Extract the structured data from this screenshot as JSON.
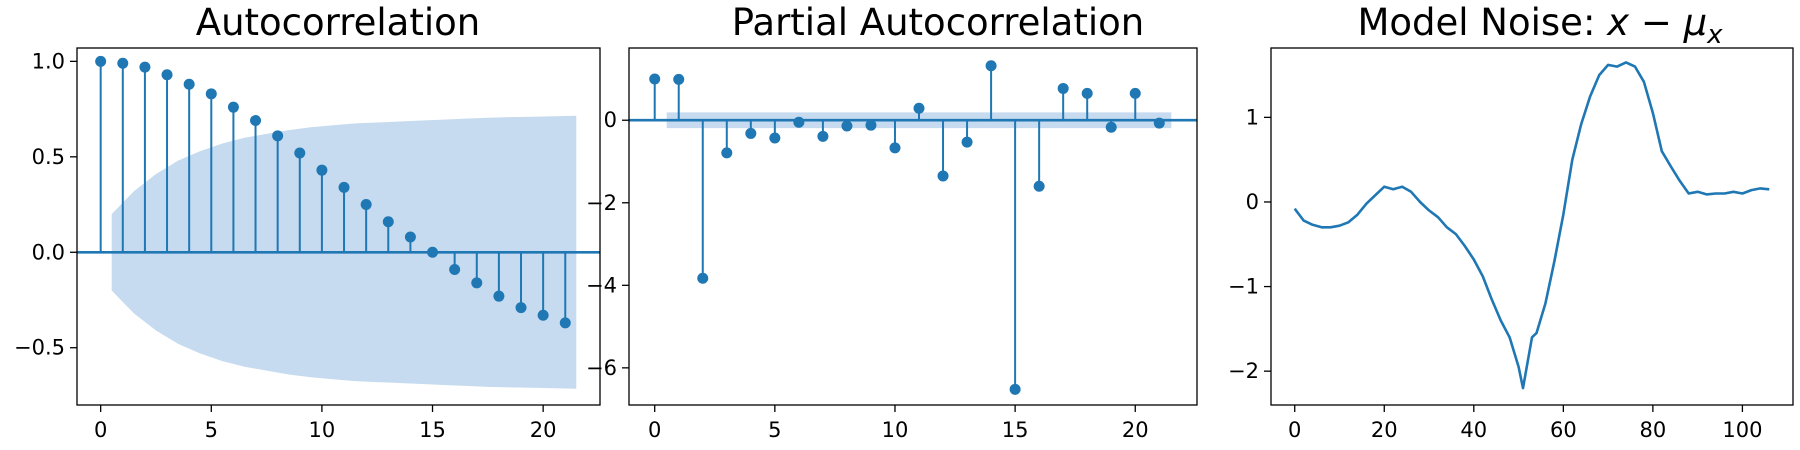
{
  "colors": {
    "series": "#1f77b4",
    "band": "#c6dbef"
  },
  "chart_data": [
    {
      "type": "stem",
      "title": "Autocorrelation",
      "xlim": [
        -1.07,
        22.57
      ],
      "ylim": [
        -0.8,
        1.07
      ],
      "x_ticks": [
        0,
        5,
        10,
        15,
        20
      ],
      "x_tick_labels": [
        "0",
        "5",
        "10",
        "15",
        "20"
      ],
      "y_ticks": [
        -0.5,
        0.0,
        0.5,
        1.0
      ],
      "y_tick_labels": [
        "−0.5",
        "0.0",
        "0.5",
        "1.0"
      ],
      "baseline": 0,
      "lags": [
        0,
        1,
        2,
        3,
        4,
        5,
        6,
        7,
        8,
        9,
        10,
        11,
        12,
        13,
        14,
        15,
        16,
        17,
        18,
        19,
        20,
        21
      ],
      "values": [
        1.0,
        0.99,
        0.97,
        0.93,
        0.88,
        0.83,
        0.76,
        0.69,
        0.61,
        0.52,
        0.43,
        0.34,
        0.25,
        0.16,
        0.08,
        0.0,
        -0.09,
        -0.16,
        -0.23,
        -0.29,
        -0.33,
        -0.37
      ],
      "confidence_band": {
        "x_start": 0.5,
        "x_end": 21.5,
        "upper": [
          0.2,
          0.32,
          0.41,
          0.48,
          0.53,
          0.57,
          0.6,
          0.62,
          0.64,
          0.655,
          0.665,
          0.675,
          0.68,
          0.685,
          0.69,
          0.695,
          0.7,
          0.705,
          0.708,
          0.71,
          0.712,
          0.715
        ]
      }
    },
    {
      "type": "stem",
      "title": "Partial Autocorrelation",
      "xlim": [
        -1.07,
        22.57
      ],
      "ylim": [
        -6.9,
        1.75
      ],
      "x_ticks": [
        0,
        5,
        10,
        15,
        20
      ],
      "x_tick_labels": [
        "0",
        "5",
        "10",
        "15",
        "20"
      ],
      "y_ticks": [
        -6,
        -4,
        -2,
        0
      ],
      "y_tick_labels": [
        "−6",
        "−4",
        "−2",
        "0"
      ],
      "baseline": 0,
      "lags": [
        0,
        1,
        2,
        3,
        4,
        5,
        6,
        7,
        8,
        9,
        10,
        11,
        12,
        13,
        14,
        15,
        16,
        17,
        18,
        19,
        20,
        21
      ],
      "values": [
        1.0,
        0.99,
        -3.83,
        -0.79,
        -0.32,
        -0.43,
        -0.05,
        -0.39,
        -0.14,
        -0.12,
        -0.67,
        0.29,
        -1.35,
        -0.53,
        1.32,
        -6.52,
        -1.6,
        0.77,
        0.65,
        -0.17,
        0.65,
        -0.07
      ],
      "confidence_band": {
        "x_start": 0.5,
        "x_end": 21.5,
        "upper": [
          0.19,
          0.19,
          0.19,
          0.19,
          0.19,
          0.19,
          0.19,
          0.19,
          0.19,
          0.19,
          0.19,
          0.19,
          0.19,
          0.19,
          0.19,
          0.19,
          0.19,
          0.19,
          0.19,
          0.19,
          0.19,
          0.19
        ]
      }
    },
    {
      "type": "line",
      "title": "Model Noise: ",
      "title_math": [
        "x",
        " − ",
        "μ",
        "x"
      ],
      "xlim": [
        -5.3,
        111.3
      ],
      "ylim": [
        -2.4,
        1.82
      ],
      "x_ticks": [
        0,
        20,
        40,
        60,
        80,
        100
      ],
      "x_tick_labels": [
        "0",
        "20",
        "40",
        "60",
        "80",
        "100"
      ],
      "y_ticks": [
        -2,
        -1,
        0,
        1
      ],
      "y_tick_labels": [
        "−2",
        "−1",
        "0",
        "1"
      ],
      "x": [
        0,
        2,
        4,
        6,
        8,
        10,
        12,
        14,
        16,
        18,
        20,
        22,
        24,
        26,
        28,
        30,
        32,
        34,
        36,
        38,
        40,
        42,
        44,
        46,
        48,
        50,
        51,
        52,
        53,
        54,
        56,
        58,
        60,
        62,
        64,
        66,
        68,
        70,
        72,
        74,
        76,
        78,
        80,
        82,
        84,
        86,
        88,
        90,
        92,
        94,
        96,
        98,
        100,
        102,
        104,
        106
      ],
      "y": [
        -0.08,
        -0.22,
        -0.27,
        -0.3,
        -0.3,
        -0.28,
        -0.24,
        -0.15,
        -0.02,
        0.08,
        0.18,
        0.15,
        0.18,
        0.12,
        0.0,
        -0.1,
        -0.18,
        -0.3,
        -0.38,
        -0.52,
        -0.68,
        -0.88,
        -1.15,
        -1.4,
        -1.6,
        -1.95,
        -2.2,
        -1.9,
        -1.6,
        -1.55,
        -1.2,
        -0.7,
        -0.15,
        0.5,
        0.92,
        1.25,
        1.5,
        1.62,
        1.6,
        1.65,
        1.6,
        1.42,
        1.05,
        0.6,
        0.42,
        0.25,
        0.1,
        0.12,
        0.09,
        0.1,
        0.1,
        0.12,
        0.1,
        0.14,
        0.16,
        0.15
      ]
    }
  ]
}
